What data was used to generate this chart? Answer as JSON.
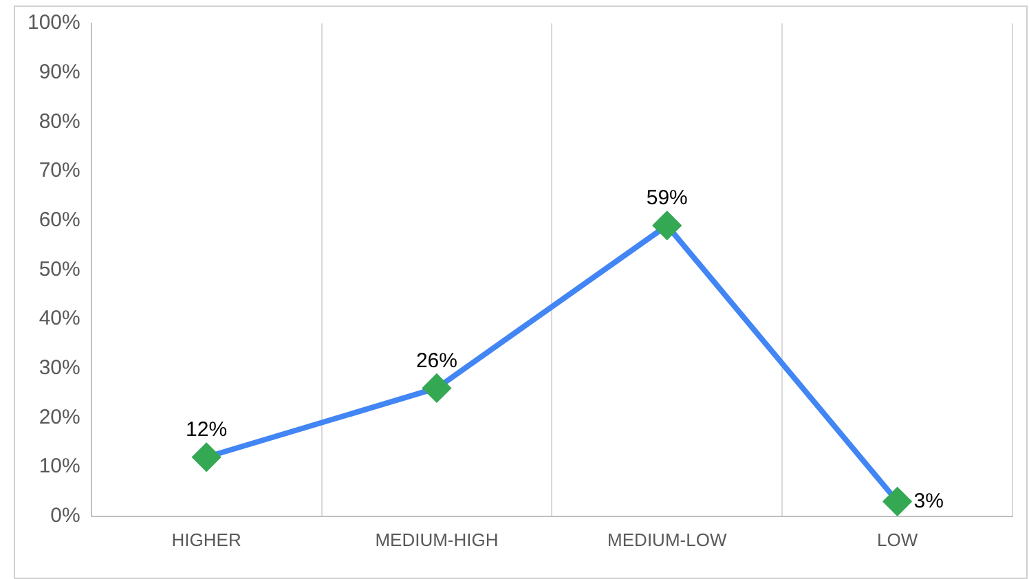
{
  "chart_data": {
    "type": "line",
    "categories": [
      "HIGHER",
      "MEDIUM-HIGH",
      "MEDIUM-LOW",
      "LOW"
    ],
    "series": [
      {
        "color": "#4285f4",
        "values": [
          12,
          26,
          59,
          3
        ],
        "value_labels": [
          "12%",
          "26%",
          "59%",
          "3%"
        ],
        "colors": [
          "#34a853",
          "#34a853",
          "#34a853",
          "#34a853"
        ]
      }
    ],
    "ylim": [
      0,
      100
    ],
    "yticks": [
      {
        "value": 0,
        "label": "0%"
      },
      {
        "value": 10,
        "label": "10%"
      },
      {
        "value": 20,
        "label": "20%"
      },
      {
        "value": 30,
        "label": "30%"
      },
      {
        "value": 40,
        "label": "40%"
      },
      {
        "value": 50,
        "label": "50%"
      },
      {
        "value": 60,
        "label": "60%"
      },
      {
        "value": 70,
        "label": "70%"
      },
      {
        "value": 80,
        "label": "80%"
      },
      {
        "value": 90,
        "label": "90%"
      },
      {
        "value": 100,
        "label": "100%"
      }
    ],
    "grid": "x",
    "legend": false,
    "marker": "diamond",
    "line_style": "solid"
  }
}
